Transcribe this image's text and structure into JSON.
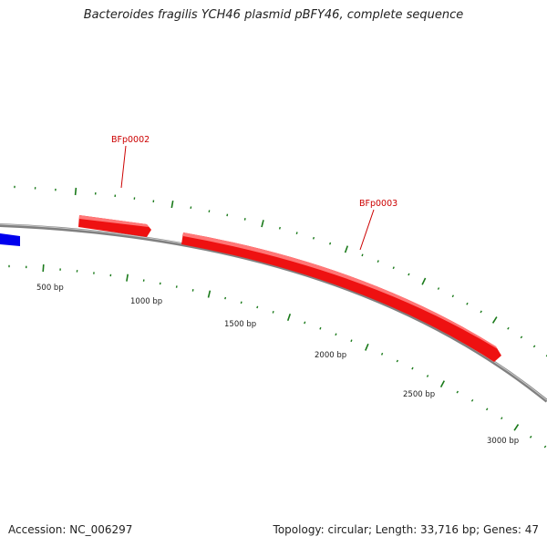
{
  "title": "Bacteroides fragilis YCH46 plasmid pBFY46, complete sequence",
  "footer": {
    "accession": "Accession: NC_006297",
    "summary": "Topology: circular; Length: 33,716 bp; Genes: 47"
  },
  "colors": {
    "backbone": "#808080",
    "forward_gene": "#ee1111",
    "reverse_gene": "#0000ee",
    "tick": "#1a7a1a",
    "gene_label": "#cc0000"
  },
  "scale_labels": [
    "500 bp",
    "1000 bp",
    "1500 bp",
    "2000 bp",
    "2500 bp",
    "3000 bp"
  ],
  "genes": [
    {
      "label": "BFp0002",
      "strand": "+"
    },
    {
      "label": "BFp0003",
      "strand": "+"
    },
    {
      "label": "",
      "strand": "-"
    }
  ]
}
